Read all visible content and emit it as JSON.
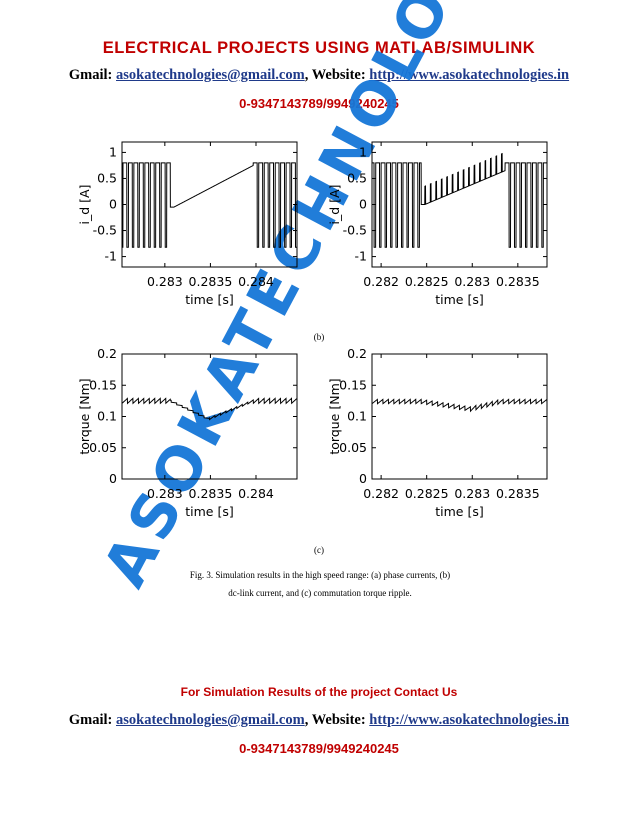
{
  "header": {
    "title": "ELECTRICAL PROJECTS USING MATLAB/SIMULINK",
    "gmail_label": "Gmail:",
    "email": "asokatechnologies@gmail.com",
    "website_label": ", Website:",
    "website": "http://www.asokatechnologies.in",
    "phone": "0-9347143789/9949240245"
  },
  "figure": {
    "label_b": "(b)",
    "label_c": "(c)",
    "caption_line1": "Fig. 3. Simulation results in the high speed range: (a) phase currents, (b)",
    "caption_line2": "dc-link current, and (c) commutation torque ripple."
  },
  "watermark": "ASOKATECHNOLOGIES",
  "footer": {
    "note": "For Simulation Results of the project Contact Us",
    "gmail_label": "Gmail:",
    "email": "asokatechnologies@gmail.com",
    "website_label": ", Website:",
    "website": "http://www.asokatechnologies.in",
    "phone": "0-9347143789/9949240245"
  },
  "chart_data": [
    {
      "type": "line",
      "id": "b-left",
      "ylabel": "i_d [A]",
      "xlabel": "time [s]",
      "xlim": [
        0.28253,
        0.28445
      ],
      "ylim": [
        -1.2,
        1.2
      ],
      "xticks": [
        0.283,
        0.2835,
        0.284
      ],
      "xtick_labels": [
        "0.283",
        "0.2835",
        "0.284"
      ],
      "yticks": [
        1,
        0.5,
        0,
        -0.5,
        -1
      ],
      "ytick_labels": [
        "1",
        "0.5",
        "0",
        "-0.5",
        "-1"
      ],
      "series": [
        {
          "name": "i_d",
          "x": [
            0.2826,
            0.28306,
            0.28347,
            0.28397,
            0.28443
          ],
          "y": [
            0.8,
            0.8,
            0.0,
            0.78,
            0.8
          ]
        }
      ]
    },
    {
      "type": "line",
      "id": "b-right",
      "ylabel": "i_d [A]",
      "xlabel": "time [s]",
      "xlim": [
        0.2819,
        0.28382
      ],
      "ylim": [
        -1.2,
        1.2
      ],
      "xticks": [
        0.282,
        0.2825,
        0.283,
        0.2835
      ],
      "xtick_labels": [
        "0.282",
        "0.2825",
        "0.283",
        "0.2835"
      ],
      "yticks": [
        1,
        0.5,
        0,
        -0.5,
        -1
      ],
      "ytick_labels": [
        "1",
        "0.5",
        "0",
        "-0.5",
        "-1"
      ],
      "series": [
        {
          "name": "i_d",
          "x": [
            0.282,
            0.28244,
            0.28256,
            0.28308,
            0.28382
          ],
          "y": [
            0.8,
            0.8,
            0.0,
            0.65,
            0.8
          ]
        }
      ]
    },
    {
      "type": "line",
      "id": "c-left",
      "ylabel": "torque [Nm]",
      "xlabel": "time [s]",
      "xlim": [
        0.28253,
        0.28445
      ],
      "ylim": [
        0,
        0.2
      ],
      "xticks": [
        0.283,
        0.2835,
        0.284
      ],
      "xtick_labels": [
        "0.283",
        "0.2835",
        "0.284"
      ],
      "yticks": [
        0.2,
        0.15,
        0.1,
        0.05,
        0
      ],
      "ytick_labels": [
        "0.2",
        "0.15",
        "0.1",
        "0.05",
        "0"
      ],
      "series": [
        {
          "name": "torque",
          "x": [
            0.28253,
            0.28306,
            0.28348,
            0.28397,
            0.28445
          ],
          "y": [
            0.128,
            0.126,
            0.096,
            0.127,
            0.128
          ]
        }
      ]
    },
    {
      "type": "line",
      "id": "c-right",
      "ylabel": "torque [Nm]",
      "xlabel": "time [s]",
      "xlim": [
        0.2819,
        0.28382
      ],
      "ylim": [
        0,
        0.2
      ],
      "xticks": [
        0.282,
        0.2825,
        0.283,
        0.2835
      ],
      "xtick_labels": [
        "0.282",
        "0.2825",
        "0.283",
        "0.2835"
      ],
      "yticks": [
        0.2,
        0.15,
        0.1,
        0.05,
        0
      ],
      "ytick_labels": [
        "0.2",
        "0.15",
        "0.1",
        "0.05",
        "0"
      ],
      "series": [
        {
          "name": "torque",
          "x": [
            0.2819,
            0.28244,
            0.28298,
            0.28331,
            0.28382
          ],
          "y": [
            0.125,
            0.124,
            0.112,
            0.124,
            0.125
          ]
        }
      ]
    }
  ]
}
